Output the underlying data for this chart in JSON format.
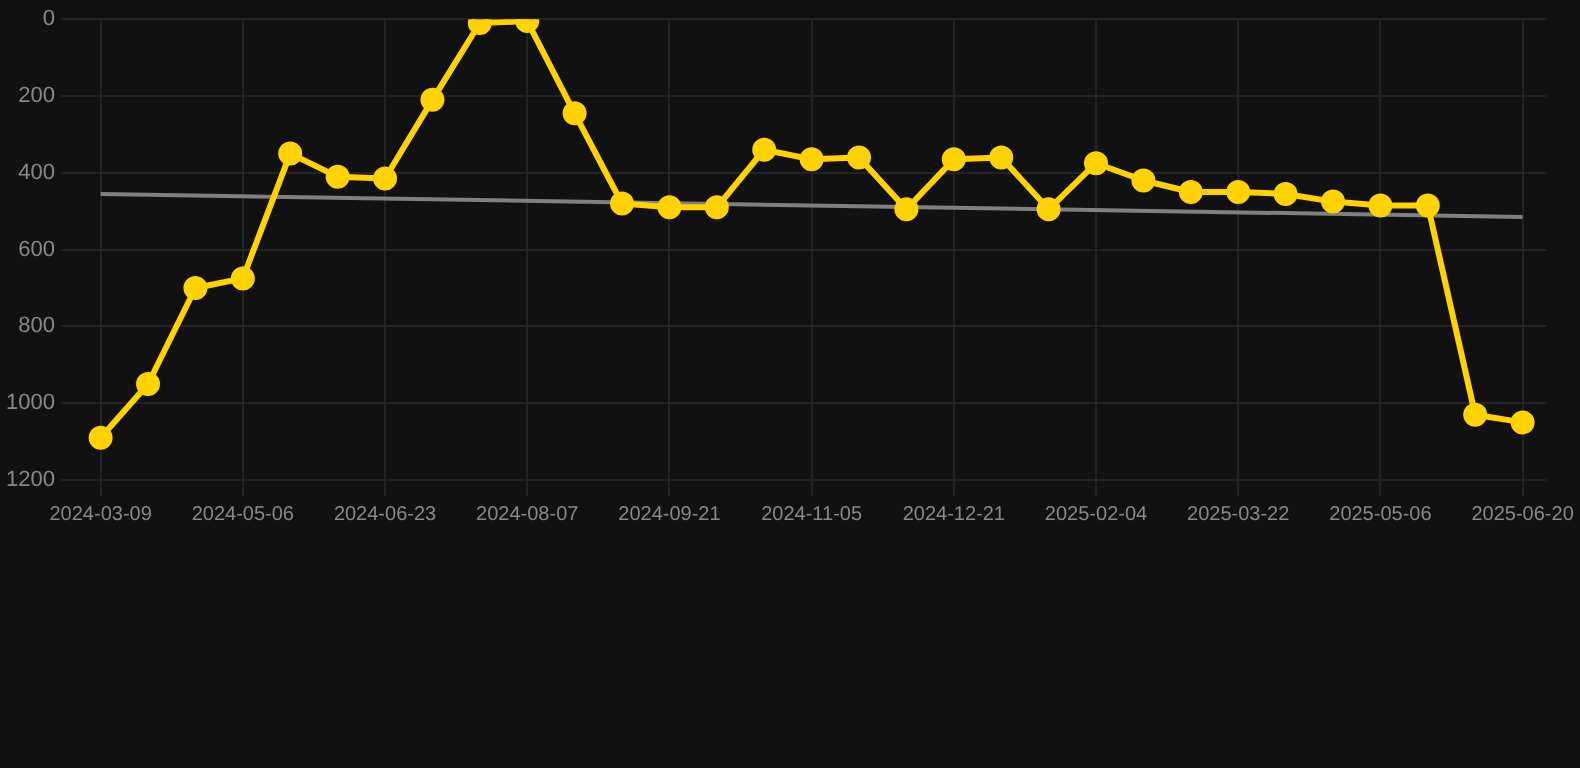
{
  "chart_data": {
    "type": "line",
    "categories": [
      "2024-03-09",
      null,
      null,
      "2024-05-06",
      null,
      null,
      "2024-06-23",
      null,
      null,
      "2024-08-07",
      null,
      null,
      "2024-09-21",
      null,
      null,
      "2024-11-05",
      null,
      null,
      "2024-12-21",
      null,
      null,
      "2025-02-04",
      null,
      null,
      "2025-03-22",
      null,
      null,
      "2025-05-06",
      null,
      null,
      "2025-06-20"
    ],
    "series": [
      {
        "color": "#ffd200",
        "values": [
          1090,
          950,
          700,
          675,
          350,
          410,
          415,
          210,
          10,
          5,
          245,
          480,
          490,
          490,
          340,
          365,
          360,
          495,
          365,
          360,
          495,
          375,
          420,
          450,
          450,
          455,
          475,
          485,
          485,
          1030,
          1050
        ]
      },
      {
        "type": "line",
        "color": "#808080",
        "marker": "none",
        "values": [
          455,
          null,
          null,
          null,
          null,
          null,
          null,
          null,
          null,
          null,
          null,
          null,
          null,
          null,
          null,
          null,
          null,
          null,
          null,
          null,
          null,
          null,
          null,
          null,
          null,
          null,
          null,
          null,
          null,
          null,
          515
        ]
      }
    ],
    "ylim": [
      1200,
      0
    ],
    "yticks": [
      0,
      200,
      400,
      600,
      800,
      1000,
      1200
    ],
    "grid": true,
    "legend": false,
    "marker": "circle",
    "line_style": "solid"
  }
}
